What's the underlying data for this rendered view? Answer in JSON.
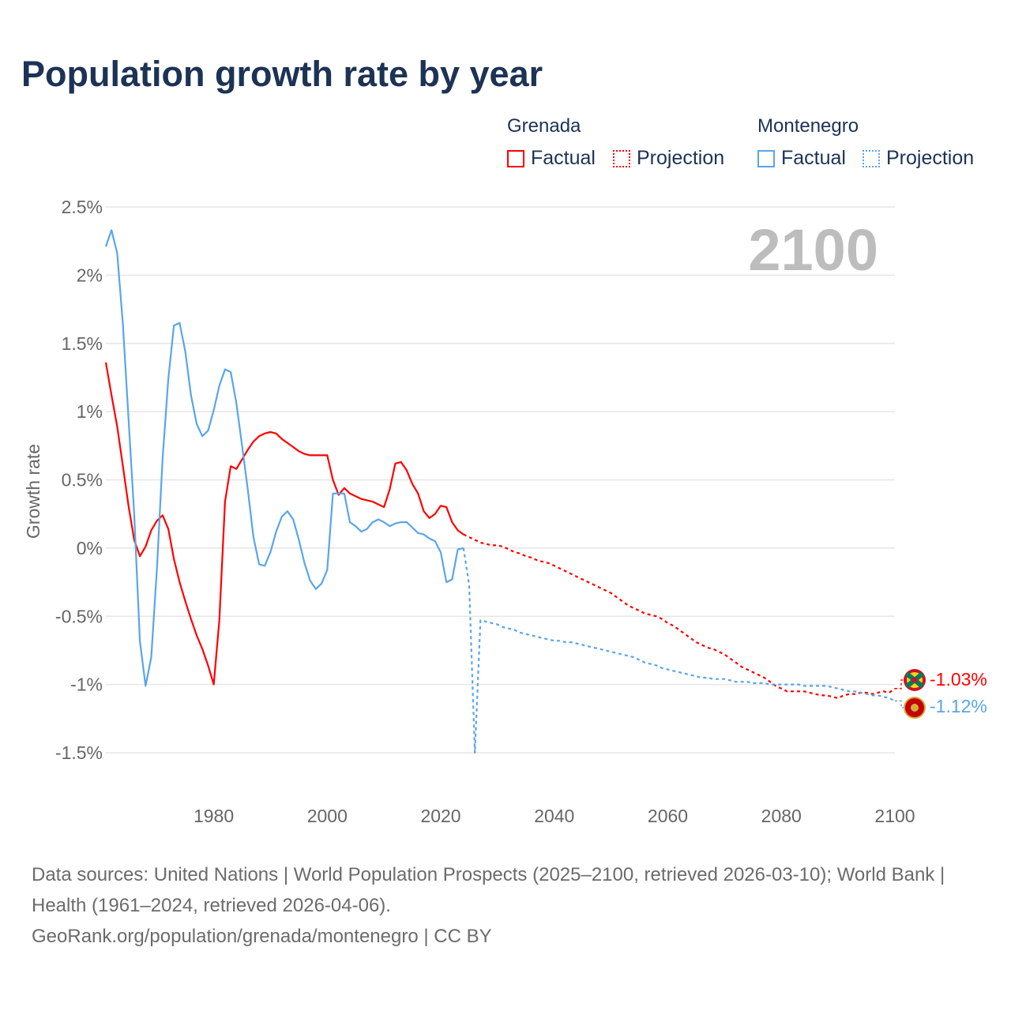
{
  "title": "Population growth rate by year",
  "legend": {
    "groups": [
      {
        "name": "Grenada",
        "factual": "Factual",
        "projection": "Projection",
        "color": "#ff0000"
      },
      {
        "name": "Montenegro",
        "factual": "Factual",
        "projection": "Projection",
        "color": "#5aa5ea"
      }
    ]
  },
  "year_label": "2100",
  "end_labels": {
    "grenada": "-1.03%",
    "montenegro": "-1.12%"
  },
  "footer": {
    "sources": "Data sources: United Nations | World Population Prospects (2025–2100, retrieved 2026-03-10); World Bank | Health (1961–2024, retrieved 2026-04-06).",
    "link": "GeoRank.org/population/grenada/montenegro | CC BY"
  },
  "chart_data": {
    "type": "line",
    "title": "Population growth rate by year",
    "xlabel": "",
    "ylabel": "Growth rate",
    "xlim": [
      1961,
      2100
    ],
    "ylim": [
      -1.5,
      2.5
    ],
    "x_ticks": [
      "1980",
      "2000",
      "2020",
      "2040",
      "2060",
      "2080",
      "2100"
    ],
    "y_ticks": [
      "2.5%",
      "2%",
      "1.5%",
      "1%",
      "0.5%",
      "0%",
      "-0.5%",
      "-1%",
      "-1.5%"
    ],
    "grid": true,
    "legend_position": "top-right",
    "series": [
      {
        "name": "Grenada Factual",
        "color": "#ff0000",
        "dashed": false,
        "start_year": 1961,
        "values": [
          1.36,
          1.12,
          0.89,
          0.6,
          0.31,
          0.06,
          -0.06,
          0.01,
          0.13,
          0.2,
          0.24,
          0.14,
          -0.08,
          -0.25,
          -0.39,
          -0.52,
          -0.64,
          -0.74,
          -0.86,
          -1.0,
          -0.53,
          0.34,
          0.6,
          0.58,
          0.65,
          0.72,
          0.78,
          0.82,
          0.84,
          0.85,
          0.84,
          0.8,
          0.77,
          0.74,
          0.71,
          0.69,
          0.68,
          0.68,
          0.68,
          0.68,
          0.5,
          0.39,
          0.44,
          0.4,
          0.38,
          0.36,
          0.35,
          0.34,
          0.32,
          0.3,
          0.43,
          0.62,
          0.63,
          0.57,
          0.47,
          0.4,
          0.27,
          0.22,
          0.25,
          0.31,
          0.3,
          0.19,
          0.13,
          0.1
        ]
      },
      {
        "name": "Grenada Projection",
        "color": "#ff0000",
        "dashed": true,
        "start_year": 2024,
        "values": [
          0.1,
          0.08,
          0.06,
          0.04,
          0.03,
          0.02,
          0.02,
          0.01,
          -0.01,
          -0.03,
          -0.04,
          -0.06,
          -0.07,
          -0.09,
          -0.1,
          -0.11,
          -0.13,
          -0.15,
          -0.17,
          -0.19,
          -0.21,
          -0.23,
          -0.25,
          -0.27,
          -0.29,
          -0.31,
          -0.33,
          -0.36,
          -0.39,
          -0.42,
          -0.44,
          -0.46,
          -0.48,
          -0.49,
          -0.5,
          -0.52,
          -0.55,
          -0.57,
          -0.6,
          -0.63,
          -0.66,
          -0.69,
          -0.71,
          -0.73,
          -0.74,
          -0.76,
          -0.78,
          -0.81,
          -0.84,
          -0.87,
          -0.89,
          -0.91,
          -0.93,
          -0.95,
          -0.98,
          -1.01,
          -1.03,
          -1.05,
          -1.05,
          -1.05,
          -1.05,
          -1.06,
          -1.07,
          -1.08,
          -1.08,
          -1.09,
          -1.1,
          -1.08,
          -1.07,
          -1.07,
          -1.06,
          -1.06,
          -1.07,
          -1.06,
          -1.05,
          -1.06,
          -1.03
        ]
      },
      {
        "name": "Montenegro Factual",
        "color": "#5aa5ea",
        "dashed": false,
        "start_year": 1961,
        "values": [
          2.21,
          2.33,
          2.16,
          1.64,
          0.95,
          0.25,
          -0.68,
          -1.01,
          -0.8,
          -0.15,
          0.66,
          1.24,
          1.63,
          1.65,
          1.44,
          1.12,
          0.91,
          0.82,
          0.86,
          1.01,
          1.19,
          1.31,
          1.29,
          1.06,
          0.75,
          0.43,
          0.08,
          -0.12,
          -0.13,
          -0.03,
          0.12,
          0.23,
          0.27,
          0.21,
          0.06,
          -0.11,
          -0.24,
          -0.3,
          -0.26,
          -0.16,
          0.4,
          0.4,
          0.4,
          0.19,
          0.16,
          0.12,
          0.14,
          0.19,
          0.21,
          0.19,
          0.16,
          0.18,
          0.19,
          0.19,
          0.15,
          0.11,
          0.1,
          0.07,
          0.05,
          -0.03,
          -0.25,
          -0.23,
          -0.01,
          0.0
        ]
      },
      {
        "name": "Montenegro Projection",
        "color": "#5aa5ea",
        "dashed": true,
        "start_year": 2024,
        "values": [
          0.0,
          -0.27,
          -1.5,
          -0.53,
          -0.54,
          -0.55,
          -0.56,
          -0.58,
          -0.59,
          -0.6,
          -0.62,
          -0.63,
          -0.64,
          -0.65,
          -0.66,
          -0.67,
          -0.68,
          -0.68,
          -0.69,
          -0.69,
          -0.7,
          -0.71,
          -0.72,
          -0.73,
          -0.74,
          -0.75,
          -0.76,
          -0.77,
          -0.78,
          -0.79,
          -0.8,
          -0.82,
          -0.84,
          -0.85,
          -0.86,
          -0.88,
          -0.89,
          -0.9,
          -0.91,
          -0.92,
          -0.93,
          -0.94,
          -0.95,
          -0.95,
          -0.96,
          -0.96,
          -0.96,
          -0.97,
          -0.98,
          -0.98,
          -0.98,
          -0.99,
          -0.99,
          -0.99,
          -1.0,
          -1.0,
          -1.0,
          -1.0,
          -1.0,
          -1.0,
          -1.01,
          -1.01,
          -1.01,
          -1.01,
          -1.01,
          -1.02,
          -1.03,
          -1.04,
          -1.05,
          -1.05,
          -1.06,
          -1.07,
          -1.08,
          -1.08,
          -1.09,
          -1.1,
          -1.12
        ]
      }
    ]
  }
}
